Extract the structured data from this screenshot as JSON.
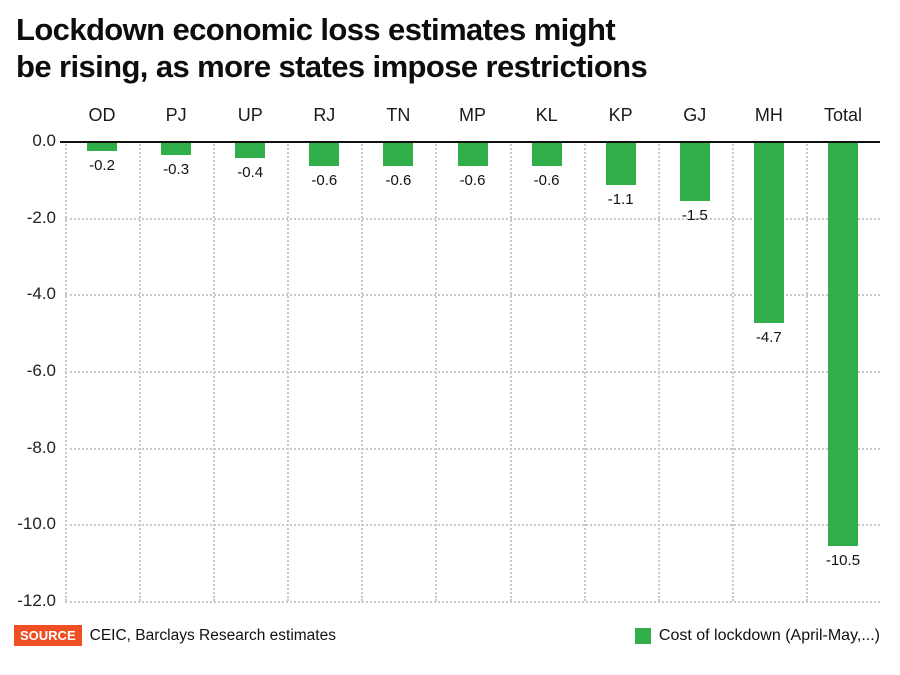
{
  "title": {
    "line1": "Lockdown economic loss estimates might",
    "line2": "be rising, as more states impose restrictions"
  },
  "chart_data": {
    "type": "bar",
    "title": "Lockdown economic loss estimates might be rising, as more states impose restrictions",
    "categories": [
      "OD",
      "PJ",
      "UP",
      "RJ",
      "TN",
      "MP",
      "KL",
      "KP",
      "GJ",
      "MH",
      "Total"
    ],
    "values": [
      -0.2,
      -0.3,
      -0.4,
      -0.6,
      -0.6,
      -0.6,
      -0.6,
      -1.1,
      -1.5,
      -4.7,
      -10.5
    ],
    "data_labels": [
      "-0.2",
      "-0.3",
      "-0.4",
      "-0.6",
      "-0.6",
      "-0.6",
      "-0.6",
      "-1.1",
      "-1.5",
      "-4.7",
      "-10.5"
    ],
    "series_name": "Cost of lockdown (April-May,...)",
    "bar_color": "#2fae4a",
    "xlabel": "",
    "ylabel": "",
    "ylim": [
      -12,
      0
    ],
    "yticks": [
      0,
      -2,
      -4,
      -6,
      -8,
      -10,
      -12
    ],
    "ytick_labels": [
      "0.0",
      "-2.0",
      "-4.0",
      "-6.0",
      "-8.0",
      "-10.0",
      "-12.0"
    ],
    "grid": true,
    "grid_color": "#c9c9c9",
    "legend_position": "bottom-right"
  },
  "footer": {
    "source_label": "SOURCE",
    "source_badge_color": "#f04e23",
    "source_text": "CEIC, Barclays Research estimates",
    "legend_label": "Cost of lockdown (April-May,...)",
    "legend_color": "#2fae4a"
  }
}
